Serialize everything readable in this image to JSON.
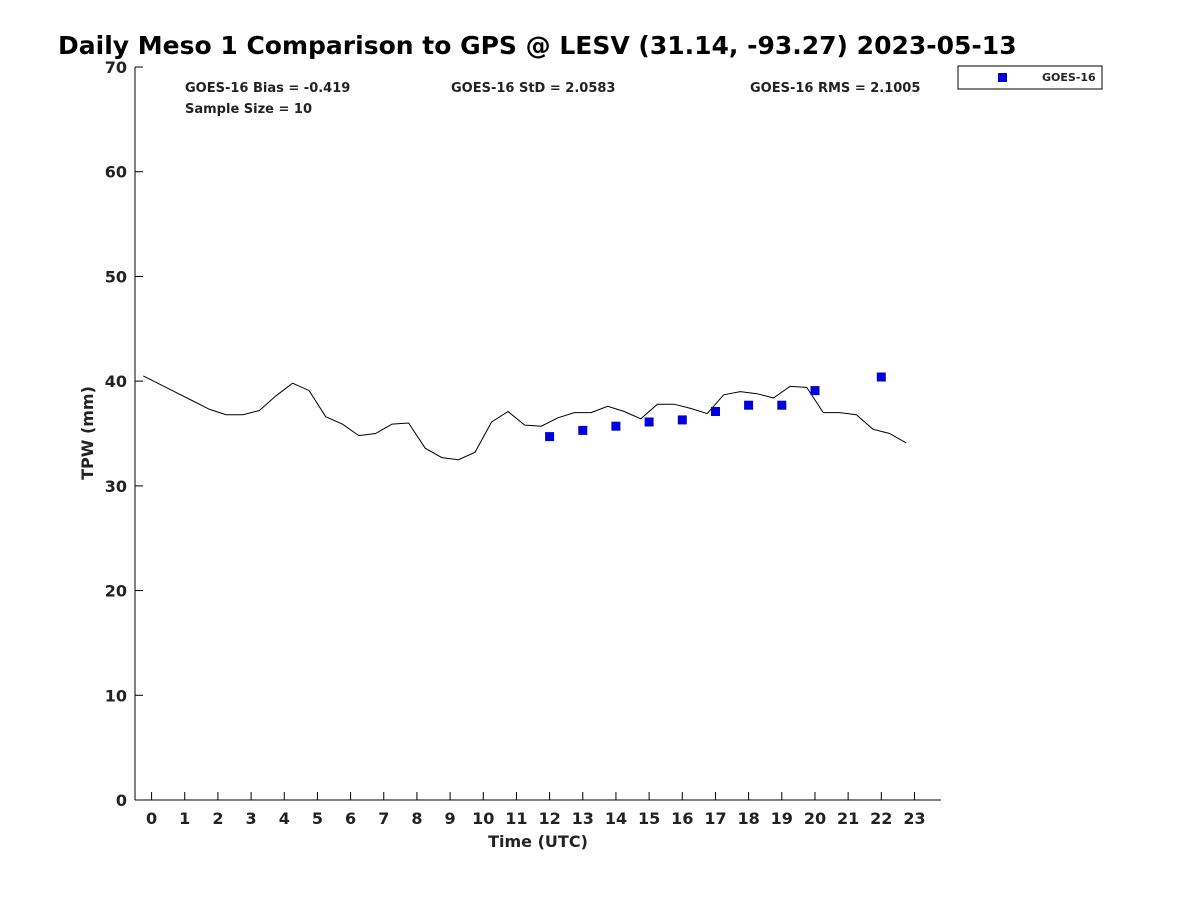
{
  "chart_data": {
    "type": "scatter",
    "title": "Daily Meso 1 Comparison to GPS @ LESV (31.14, -93.27) 2023-05-13",
    "xlabel": "Time (UTC)",
    "ylabel": "TPW (mm)",
    "xlim": [
      -0.5,
      23.8
    ],
    "ylim": [
      0,
      70
    ],
    "x_ticks": [
      0,
      1,
      2,
      3,
      4,
      5,
      6,
      7,
      8,
      9,
      10,
      11,
      12,
      13,
      14,
      15,
      16,
      17,
      18,
      19,
      20,
      21,
      22,
      23
    ],
    "y_ticks": [
      0,
      10,
      20,
      30,
      40,
      50,
      60,
      70
    ],
    "grid": false,
    "legend": {
      "position": "top-right-outside",
      "entries": [
        "GOES-16"
      ]
    },
    "stats": {
      "bias": "GOES-16 Bias = -0.419",
      "std": "GOES-16 StD = 2.0583",
      "rms": "GOES-16 RMS = 2.1005",
      "sample": "Sample Size = 10"
    },
    "gps_line": {
      "color": "#000000",
      "x": [
        -0.25,
        0.25,
        0.75,
        1.25,
        1.75,
        2.25,
        2.75,
        3.25,
        3.75,
        4.25,
        4.75,
        5.25,
        5.75,
        6.25,
        6.75,
        7.25,
        7.75,
        8.25,
        8.75,
        9.25,
        9.75,
        10.25,
        10.75,
        11.25,
        11.75,
        12.25,
        12.75,
        13.25,
        13.75,
        14.25,
        14.75,
        15.25,
        15.75,
        16.25,
        16.75,
        17.25,
        17.75,
        18.25,
        18.75,
        19.25,
        19.75,
        20.25,
        20.75,
        21.25,
        21.75,
        22.25,
        22.75
      ],
      "y": [
        40.5,
        39.7,
        38.9,
        38.1,
        37.3,
        36.8,
        36.8,
        37.2,
        38.6,
        39.8,
        39.1,
        36.6,
        35.9,
        34.8,
        35.0,
        35.9,
        36.0,
        33.6,
        32.7,
        32.5,
        33.2,
        36.1,
        37.1,
        35.8,
        35.7,
        36.5,
        37.0,
        37.0,
        37.6,
        37.1,
        36.4,
        37.8,
        37.8,
        37.4,
        36.9,
        38.7,
        39.0,
        38.8,
        38.4,
        39.5,
        39.4,
        37.0,
        37.0,
        36.8,
        35.4,
        35.0,
        34.1
      ]
    },
    "series": [
      {
        "name": "GOES-16",
        "color": "#0000dd",
        "x": [
          12,
          13,
          14,
          15,
          16,
          17,
          18,
          19,
          20,
          22
        ],
        "y": [
          34.7,
          35.3,
          35.7,
          36.1,
          36.3,
          37.1,
          37.7,
          37.7,
          39.1,
          40.4
        ]
      }
    ]
  }
}
